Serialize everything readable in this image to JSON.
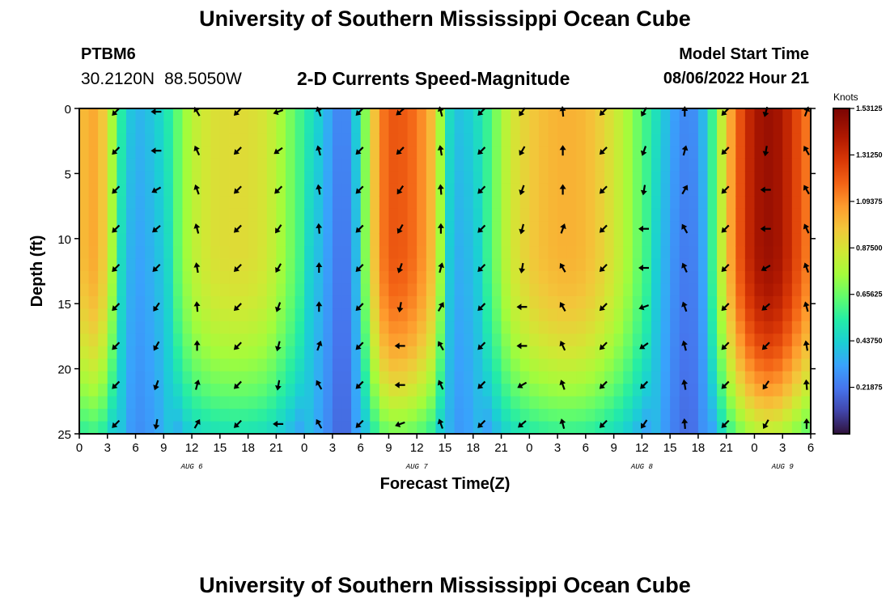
{
  "page_title": "University of Southern Mississippi Ocean Cube",
  "station": {
    "id": "PTBM6",
    "lat": "30.2120N",
    "lon": "88.5050W"
  },
  "model": {
    "label": "Model Start Time",
    "value": "08/06/2022 Hour 21"
  },
  "chart_data": {
    "type": "heatmap",
    "title": "2-D Currents Speed-Magnitude",
    "xlabel": "Forecast Time(Z)",
    "ylabel": "Depth (ft)",
    "colorbar_label": "Knots",
    "colorbar_ticks": [
      "1.53125",
      "1.31250",
      "1.09375",
      "0.87500",
      "0.65625",
      "0.43750",
      "0.21875"
    ],
    "zlim": [
      0.0,
      1.53125
    ],
    "x_tick_labels": [
      "0",
      "3",
      "6",
      "9",
      "12",
      "15",
      "18",
      "21",
      "0",
      "3",
      "6",
      "9",
      "12",
      "15",
      "18",
      "21",
      "0",
      "3",
      "6",
      "9",
      "12",
      "15",
      "18",
      "21",
      "0",
      "3",
      "6"
    ],
    "x_start_hour": 0,
    "x_end_hour": 78,
    "x_tick_step_hours": 3,
    "date_labels": [
      {
        "text": "AUG 6",
        "hour": 12
      },
      {
        "text": "AUG 7",
        "hour": 36
      },
      {
        "text": "AUG 8",
        "hour": 60
      },
      {
        "text": "AUG 9",
        "hour": 75
      }
    ],
    "y_ticks": [
      0,
      5,
      10,
      15,
      20,
      25
    ],
    "ylim": [
      25,
      0
    ],
    "speed_profile": {
      "hours": [
        0,
        1,
        2,
        3,
        4,
        5,
        6,
        7,
        8,
        9,
        10,
        11,
        12,
        14,
        16,
        18,
        20,
        22,
        24,
        26,
        27,
        28,
        29,
        30,
        31,
        32,
        33,
        34,
        36,
        38,
        39,
        40,
        41,
        42,
        43,
        44,
        45,
        46,
        48,
        50,
        52,
        54,
        56,
        58,
        60,
        62,
        63,
        64,
        65,
        66,
        67,
        68,
        69,
        70,
        71,
        72,
        73,
        74,
        75,
        76,
        77,
        78
      ],
      "surface": [
        0.95,
        1.05,
        1.02,
        0.9,
        0.62,
        0.45,
        0.36,
        0.38,
        0.42,
        0.48,
        0.58,
        0.7,
        0.8,
        0.88,
        0.9,
        0.9,
        0.86,
        0.72,
        0.55,
        0.4,
        0.3,
        0.22,
        0.3,
        0.55,
        0.85,
        1.1,
        1.2,
        1.22,
        1.15,
        0.95,
        0.55,
        0.4,
        0.4,
        0.45,
        0.52,
        0.62,
        0.75,
        0.85,
        0.95,
        1.0,
        1.02,
        1.0,
        0.92,
        0.8,
        0.62,
        0.45,
        0.35,
        0.28,
        0.25,
        0.3,
        0.45,
        0.7,
        0.95,
        1.15,
        1.3,
        1.4,
        1.45,
        1.45,
        1.4,
        1.3,
        1.2,
        1.1
      ]
    },
    "arrow_columns": [
      {
        "hour": 3.9,
        "angles": [
          225,
          225,
          225,
          225,
          225,
          225,
          225,
          225,
          225,
          225,
          225,
          225,
          225,
          225,
          225,
          225,
          225,
          225,
          225
        ]
      },
      {
        "hour": 8.0,
        "angles": [
          270,
          270,
          270,
          270,
          250,
          240,
          235,
          230,
          225,
          225,
          215,
          215,
          210,
          210,
          200,
          200,
          195,
          190,
          190
        ]
      },
      {
        "hour": 12.0,
        "angles": [
          330,
          330,
          330,
          335,
          335,
          340,
          340,
          345,
          345,
          350,
          350,
          355,
          355,
          0,
          0,
          0,
          15,
          20,
          30
        ]
      }
    ]
  }
}
